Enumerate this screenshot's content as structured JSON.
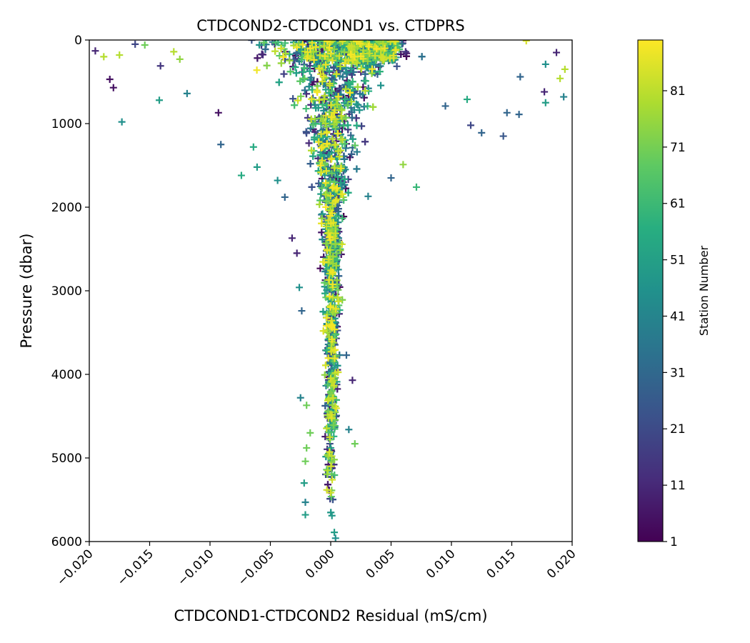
{
  "chart_data": {
    "type": "scatter",
    "title": "CTDCOND2-CTDCOND1 vs. CTDPRS",
    "xlabel": "CTDCOND1-CTDCOND2 Residual (mS/cm)",
    "ylabel": "Pressure (dbar)",
    "xlim": [
      -0.02,
      0.02
    ],
    "ylim": [
      6000,
      0
    ],
    "y_inverted": true,
    "x_ticks": [
      -0.02,
      -0.015,
      -0.01,
      -0.005,
      0.0,
      0.005,
      0.01,
      0.015,
      0.02
    ],
    "x_tick_labels": [
      "−0.020",
      "−0.015",
      "−0.010",
      "−0.005",
      "0.000",
      "0.005",
      "0.010",
      "0.015",
      "0.020"
    ],
    "y_ticks": [
      0,
      1000,
      2000,
      3000,
      4000,
      5000,
      6000
    ],
    "y_tick_labels": [
      "0",
      "1000",
      "2000",
      "3000",
      "4000",
      "5000",
      "6000"
    ],
    "marker": "+",
    "grid": false,
    "colorbar": {
      "label": "Station Number",
      "colormap": "viridis",
      "range": [
        1,
        90
      ],
      "ticks": [
        1,
        11,
        21,
        31,
        41,
        51,
        61,
        71,
        81
      ],
      "tick_labels": [
        "1",
        "11",
        "21",
        "31",
        "41",
        "51",
        "61",
        "71",
        "81"
      ]
    },
    "point_envelope": [
      {
        "pressure": 0,
        "center": 0.0005,
        "spread": 0.0075
      },
      {
        "pressure": 1000,
        "center": 0.0002,
        "spread": 0.0028
      },
      {
        "pressure": 2000,
        "center": 0.0001,
        "spread": 0.0012
      },
      {
        "pressure": 3000,
        "center": 0.0001,
        "spread": 0.0008
      },
      {
        "pressure": 4000,
        "center": 0.0001,
        "spread": 0.0006
      },
      {
        "pressure": 5000,
        "center": 0.0,
        "spread": 0.0005
      },
      {
        "pressure": 5800,
        "center": 0.0,
        "spread": 0.0004
      }
    ],
    "outliers": [
      {
        "x": -0.0195,
        "y": 130,
        "station": 10
      },
      {
        "x": -0.0183,
        "y": 470,
        "station": 5
      },
      {
        "x": -0.018,
        "y": 570,
        "station": 5
      },
      {
        "x": -0.0173,
        "y": 980,
        "station": 45
      },
      {
        "x": -0.0162,
        "y": 50,
        "station": 20
      },
      {
        "x": -0.0154,
        "y": 60,
        "station": 70
      },
      {
        "x": -0.0142,
        "y": 720,
        "station": 50
      },
      {
        "x": -0.0141,
        "y": 310,
        "station": 15
      },
      {
        "x": -0.0119,
        "y": 640,
        "station": 40
      },
      {
        "x": -0.0093,
        "y": 870,
        "station": 5
      },
      {
        "x": -0.0091,
        "y": 1250,
        "station": 30
      },
      {
        "x": -0.0074,
        "y": 1620,
        "station": 55
      },
      {
        "x": -0.0064,
        "y": 1280,
        "station": 55
      },
      {
        "x": -0.0061,
        "y": 1520,
        "station": 50
      },
      {
        "x": -0.0044,
        "y": 1680,
        "station": 45
      },
      {
        "x": -0.0038,
        "y": 1880,
        "station": 30
      },
      {
        "x": -0.0032,
        "y": 2370,
        "station": 10
      },
      {
        "x": -0.0028,
        "y": 2550,
        "station": 10
      },
      {
        "x": -0.0026,
        "y": 2960,
        "station": 45
      },
      {
        "x": -0.0024,
        "y": 3240,
        "station": 30
      },
      {
        "x": -0.0025,
        "y": 4280,
        "station": 40
      },
      {
        "x": -0.002,
        "y": 4370,
        "station": 70
      },
      {
        "x": -0.0017,
        "y": 4700,
        "station": 70
      },
      {
        "x": -0.002,
        "y": 4880,
        "station": 70
      },
      {
        "x": -0.0021,
        "y": 5040,
        "station": 70
      },
      {
        "x": -0.0022,
        "y": 5300,
        "station": 50
      },
      {
        "x": -0.0021,
        "y": 5530,
        "station": 40
      },
      {
        "x": -0.0021,
        "y": 5680,
        "station": 50
      },
      {
        "x": 0.0003,
        "y": 5890,
        "station": 50
      },
      {
        "x": 0.0004,
        "y": 5960,
        "station": 45
      },
      {
        "x": 0.0018,
        "y": 4070,
        "station": 10
      },
      {
        "x": 0.0013,
        "y": 3770,
        "station": 30
      },
      {
        "x": 0.002,
        "y": 4830,
        "station": 70
      },
      {
        "x": 0.0015,
        "y": 4660,
        "station": 40
      },
      {
        "x": 0.0031,
        "y": 1870,
        "station": 40
      },
      {
        "x": 0.005,
        "y": 1650,
        "station": 30
      },
      {
        "x": 0.006,
        "y": 1490,
        "station": 75
      },
      {
        "x": 0.0071,
        "y": 1760,
        "station": 60
      },
      {
        "x": 0.0095,
        "y": 790,
        "station": 30
      },
      {
        "x": 0.0113,
        "y": 710,
        "station": 55
      },
      {
        "x": 0.0116,
        "y": 1020,
        "station": 20
      },
      {
        "x": 0.0125,
        "y": 1110,
        "station": 30
      },
      {
        "x": 0.0143,
        "y": 1150,
        "station": 25
      },
      {
        "x": 0.0146,
        "y": 870,
        "station": 30
      },
      {
        "x": 0.0156,
        "y": 890,
        "station": 30
      },
      {
        "x": 0.0157,
        "y": 440,
        "station": 30
      },
      {
        "x": 0.0177,
        "y": 620,
        "station": 10
      },
      {
        "x": 0.0178,
        "y": 750,
        "station": 50
      },
      {
        "x": 0.019,
        "y": 460,
        "station": 80
      },
      {
        "x": 0.0193,
        "y": 680,
        "station": 40
      },
      {
        "x": 0.0194,
        "y": 350,
        "station": 80
      },
      {
        "x": 0.0187,
        "y": 150,
        "station": 10
      },
      {
        "x": 0.0162,
        "y": 10,
        "station": 85
      },
      {
        "x": 0.0178,
        "y": 290,
        "station": 45
      },
      {
        "x": -0.0188,
        "y": 200,
        "station": 80
      },
      {
        "x": -0.0175,
        "y": 180,
        "station": 80
      },
      {
        "x": -0.013,
        "y": 140,
        "station": 80
      },
      {
        "x": -0.0125,
        "y": 230,
        "station": 75
      }
    ]
  }
}
